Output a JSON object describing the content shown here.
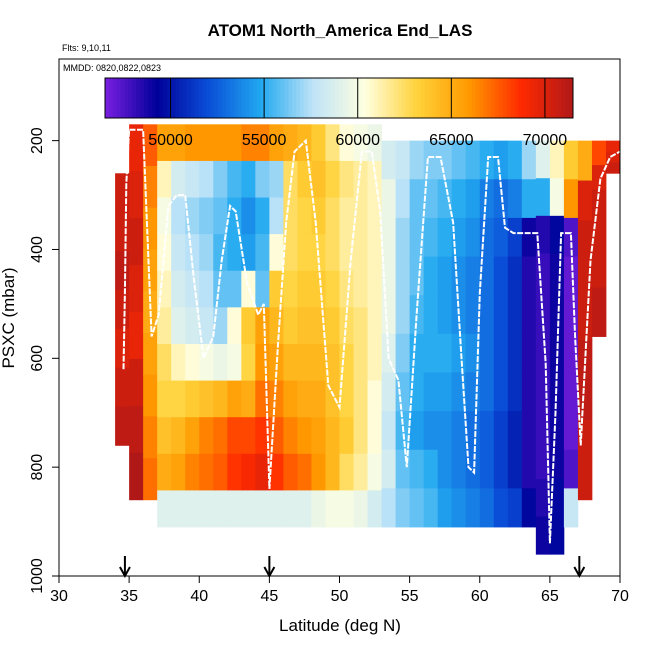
{
  "chart_data": {
    "type": "heatmap",
    "title": "ATOM1 North_America End_LAS",
    "flights_note": "Flts: 9,10,11",
    "date_note": "MMDD: 0820,0822,0823",
    "xlabel": "Latitude (deg N)",
    "ylabel": "PSXC (mbar)",
    "xlim": [
      30,
      70
    ],
    "ylim": [
      1000,
      50
    ],
    "x_ticks": [
      "30",
      "35",
      "40",
      "45",
      "50",
      "55",
      "60",
      "65",
      "70"
    ],
    "y_ticks": [
      "200",
      "400",
      "600",
      "800",
      "1000"
    ],
    "colorbar": {
      "range": [
        46500,
        71500
      ],
      "tick_labels": [
        "50000",
        "55000",
        "60000",
        "65000",
        "70000"
      ],
      "stops": [
        "#7a1fe0",
        "#00009a",
        "#0a4fd8",
        "#21a9f0",
        "#bfe3f7",
        "#ffffe0",
        "#ffd23a",
        "#ff9900",
        "#ff2a00",
        "#b01818"
      ]
    },
    "arrows_at_latitude": [
      34.7,
      45.0,
      67.1
    ],
    "columns": [
      {
        "lat": [
          34.0,
          35.0
        ],
        "p": [
          260,
          760
        ],
        "values": [
          70500,
          70500,
          71000,
          70500,
          70000,
          70500,
          71000
        ]
      },
      {
        "lat": [
          35.0,
          36.0
        ],
        "p": [
          170,
          860
        ],
        "values": [
          69500,
          70000,
          70500,
          70000,
          69500,
          70500,
          71000,
          71500
        ]
      },
      {
        "lat": [
          36.0,
          37.0
        ],
        "p": [
          170,
          860
        ],
        "values": [
          67500,
          66500,
          66000,
          65500,
          65000,
          65500,
          66000,
          66500,
          67000
        ]
      },
      {
        "lat": [
          37.0,
          38.0
        ],
        "p": [
          170,
          910
        ],
        "values": [
          65500,
          61000,
          60000,
          60500,
          61000,
          61500,
          62500,
          63000,
          64000,
          65000,
          59000
        ]
      },
      {
        "lat": [
          38.0,
          39.0
        ],
        "p": [
          170,
          910
        ],
        "values": [
          65500,
          58500,
          57500,
          58000,
          58500,
          59000,
          61000,
          63000,
          64500,
          65500,
          59000
        ]
      },
      {
        "lat": [
          39.0,
          40.0
        ],
        "p": [
          170,
          910
        ],
        "values": [
          66000,
          58000,
          57000,
          57500,
          58000,
          58500,
          60500,
          63500,
          65500,
          66500,
          59000
        ]
      },
      {
        "lat": [
          40.0,
          41.0
        ],
        "p": [
          170,
          910
        ],
        "values": [
          66000,
          57500,
          56500,
          57000,
          57500,
          58000,
          60000,
          64000,
          66500,
          67000,
          59000
        ]
      },
      {
        "lat": [
          41.0,
          42.0
        ],
        "p": [
          170,
          910
        ],
        "values": [
          66000,
          56500,
          56000,
          55500,
          56000,
          57000,
          59500,
          64500,
          67000,
          67500,
          59000
        ]
      },
      {
        "lat": [
          42.0,
          43.0
        ],
        "p": [
          170,
          910
        ],
        "values": [
          66000,
          55500,
          55000,
          55000,
          56000,
          60500,
          60000,
          65500,
          68000,
          68500,
          59000
        ]
      },
      {
        "lat": [
          43.0,
          44.0
        ],
        "p": [
          170,
          910
        ],
        "values": [
          66500,
          55000,
          54000,
          54500,
          60500,
          63500,
          63000,
          65000,
          68000,
          69000,
          59000
        ]
      },
      {
        "lat": [
          44.0,
          45.0
        ],
        "p": [
          170,
          910
        ],
        "values": [
          66500,
          56500,
          55000,
          55500,
          56000,
          65500,
          66000,
          67000,
          68500,
          69500,
          59000
        ]
      },
      {
        "lat": [
          45.0,
          46.0
        ],
        "p": [
          170,
          910
        ],
        "values": [
          65500,
          57000,
          57500,
          60500,
          63500,
          64500,
          65500,
          66500,
          67500,
          68500,
          59000
        ]
      },
      {
        "lat": [
          46.0,
          47.0
        ],
        "p": [
          170,
          910
        ],
        "values": [
          65000,
          62500,
          62500,
          62500,
          63000,
          63500,
          64500,
          65500,
          66500,
          67500,
          59000
        ]
      },
      {
        "lat": [
          47.0,
          48.0
        ],
        "p": [
          170,
          910
        ],
        "values": [
          64500,
          63500,
          63000,
          63000,
          63500,
          64000,
          64500,
          65000,
          66000,
          67000,
          59000
        ]
      },
      {
        "lat": [
          48.0,
          49.0
        ],
        "p": [
          170,
          910
        ],
        "values": [
          63500,
          64000,
          63500,
          63000,
          63500,
          64000,
          64500,
          65000,
          65500,
          66000,
          59500
        ]
      },
      {
        "lat": [
          49.0,
          50.0
        ],
        "p": [
          170,
          910
        ],
        "values": [
          62000,
          63000,
          62500,
          62500,
          63000,
          63500,
          64000,
          64000,
          64500,
          64500,
          60000
        ]
      },
      {
        "lat": [
          50.0,
          51.0
        ],
        "p": [
          170,
          910
        ],
        "values": [
          60500,
          62000,
          61500,
          61500,
          62000,
          62500,
          63000,
          63000,
          63500,
          62500,
          60000
        ]
      },
      {
        "lat": [
          51.0,
          52.0
        ],
        "p": [
          170,
          910
        ],
        "values": [
          60000,
          61500,
          61500,
          61500,
          61500,
          62000,
          62000,
          62000,
          62000,
          61500,
          59500
        ]
      },
      {
        "lat": [
          52.0,
          53.0
        ],
        "p": [
          170,
          910
        ],
        "values": [
          59500,
          61000,
          61000,
          61000,
          61000,
          61000,
          61000,
          60500,
          60500,
          60000,
          58500
        ]
      },
      {
        "lat": [
          53.0,
          54.0
        ],
        "p": [
          200,
          910
        ],
        "values": [
          58500,
          59500,
          59500,
          59500,
          59500,
          59000,
          58500,
          58000,
          58500,
          57500
        ]
      },
      {
        "lat": [
          54.0,
          55.0
        ],
        "p": [
          200,
          910
        ],
        "values": [
          58000,
          57500,
          57000,
          57000,
          57000,
          56500,
          56000,
          55500,
          56000,
          56500
        ]
      },
      {
        "lat": [
          55.0,
          56.0
        ],
        "p": [
          200,
          910
        ],
        "values": [
          57000,
          56000,
          56000,
          56000,
          55500,
          55000,
          55000,
          54500,
          55500,
          56000
        ]
      },
      {
        "lat": [
          56.0,
          57.0
        ],
        "p": [
          200,
          910
        ],
        "values": [
          56500,
          56000,
          55500,
          55000,
          55000,
          55000,
          54500,
          54000,
          55000,
          55500
        ]
      },
      {
        "lat": [
          57.0,
          58.0
        ],
        "p": [
          200,
          910
        ],
        "values": [
          56500,
          55500,
          55000,
          54500,
          54500,
          55000,
          54500,
          54000,
          54000,
          54500
        ]
      },
      {
        "lat": [
          58.0,
          59.0
        ],
        "p": [
          200,
          910
        ],
        "values": [
          56000,
          55000,
          54500,
          54000,
          54000,
          54500,
          54000,
          53500,
          53500,
          54000
        ]
      },
      {
        "lat": [
          59.0,
          60.0
        ],
        "p": [
          200,
          910
        ],
        "values": [
          55500,
          54500,
          54000,
          53500,
          53500,
          54000,
          53500,
          53000,
          53000,
          53500
        ]
      },
      {
        "lat": [
          60.0,
          61.0
        ],
        "p": [
          200,
          910
        ],
        "values": [
          55000,
          53500,
          53000,
          53000,
          53000,
          53000,
          53000,
          52500,
          52500,
          53000
        ]
      },
      {
        "lat": [
          61.0,
          62.0
        ],
        "p": [
          200,
          910
        ],
        "values": [
          54500,
          53000,
          52500,
          52000,
          52000,
          52000,
          52000,
          51500,
          51500,
          52000
        ]
      },
      {
        "lat": [
          62.0,
          63.0
        ],
        "p": [
          200,
          910
        ],
        "values": [
          55000,
          53500,
          51500,
          51000,
          51000,
          51000,
          51000,
          50500,
          50500,
          51500
        ]
      },
      {
        "lat": [
          63.0,
          64.0
        ],
        "p": [
          200,
          910
        ],
        "values": [
          57000,
          55000,
          49000,
          48500,
          48500,
          48500,
          48500,
          48500,
          48500,
          49500
        ]
      },
      {
        "lat": [
          64.0,
          65.0
        ],
        "p": [
          200,
          960
        ],
        "values": [
          59000,
          55000,
          48500,
          48000,
          48000,
          48000,
          48000,
          48000,
          48000,
          48500,
          49000
        ]
      },
      {
        "lat": [
          65.0,
          66.0
        ],
        "p": [
          200,
          960
        ],
        "values": [
          61000,
          60000,
          49500,
          49000,
          49000,
          49000,
          49000,
          49000,
          49000,
          49500,
          49500
        ]
      },
      {
        "lat": [
          66.0,
          67.0
        ],
        "p": [
          200,
          910
        ],
        "values": [
          63500,
          66000,
          47500,
          47000,
          47000,
          47000,
          47000,
          47000,
          47500,
          58000
        ]
      },
      {
        "lat": [
          67.0,
          68.0
        ],
        "p": [
          200,
          860
        ],
        "values": [
          65000,
          70000,
          70500,
          70500,
          70500,
          71000,
          71000,
          70500,
          70500
        ]
      },
      {
        "lat": [
          68.0,
          69.0
        ],
        "p": [
          200,
          560
        ],
        "values": [
          68000,
          70000,
          70500,
          70500,
          70500,
          70500,
          71000,
          71000
        ]
      },
      {
        "lat": [
          69.0,
          70.0
        ],
        "p": [
          200,
          260
        ],
        "values": [
          69500,
          70000,
          70500
        ]
      }
    ],
    "flight_track": [
      [
        34.6,
        620
      ],
      [
        34.7,
        480
      ],
      [
        34.8,
        280
      ],
      [
        35.0,
        180
      ],
      [
        35.5,
        180
      ],
      [
        36.0,
        180
      ],
      [
        36.6,
        560
      ],
      [
        37.1,
        520
      ],
      [
        37.8,
        320
      ],
      [
        38.4,
        300
      ],
      [
        39.0,
        300
      ],
      [
        39.6,
        450
      ],
      [
        40.3,
        600
      ],
      [
        41.0,
        560
      ],
      [
        41.6,
        420
      ],
      [
        42.2,
        320
      ],
      [
        42.6,
        330
      ],
      [
        43.4,
        460
      ],
      [
        44.2,
        520
      ],
      [
        44.6,
        500
      ],
      [
        45.0,
        840
      ],
      [
        45.6,
        580
      ],
      [
        46.2,
        350
      ],
      [
        46.8,
        220
      ],
      [
        47.6,
        200
      ],
      [
        48.3,
        350
      ],
      [
        49.2,
        650
      ],
      [
        50.0,
        690
      ],
      [
        50.8,
        420
      ],
      [
        51.6,
        220
      ],
      [
        52.3,
        220
      ],
      [
        52.9,
        330
      ],
      [
        53.5,
        600
      ],
      [
        54.2,
        640
      ],
      [
        54.8,
        800
      ],
      [
        55.5,
        520
      ],
      [
        56.3,
        230
      ],
      [
        57.2,
        230
      ],
      [
        58.1,
        350
      ],
      [
        58.7,
        600
      ],
      [
        59.2,
        800
      ],
      [
        59.6,
        810
      ],
      [
        60.0,
        480
      ],
      [
        60.6,
        230
      ],
      [
        61.3,
        230
      ],
      [
        61.8,
        360
      ],
      [
        62.4,
        370
      ],
      [
        63.3,
        370
      ],
      [
        64.1,
        370
      ],
      [
        64.7,
        610
      ],
      [
        65.0,
        940
      ],
      [
        65.4,
        700
      ],
      [
        65.8,
        370
      ],
      [
        66.5,
        370
      ],
      [
        66.8,
        560
      ],
      [
        67.2,
        760
      ],
      [
        67.9,
        420
      ],
      [
        68.6,
        270
      ],
      [
        69.3,
        230
      ],
      [
        70.0,
        220
      ]
    ]
  }
}
